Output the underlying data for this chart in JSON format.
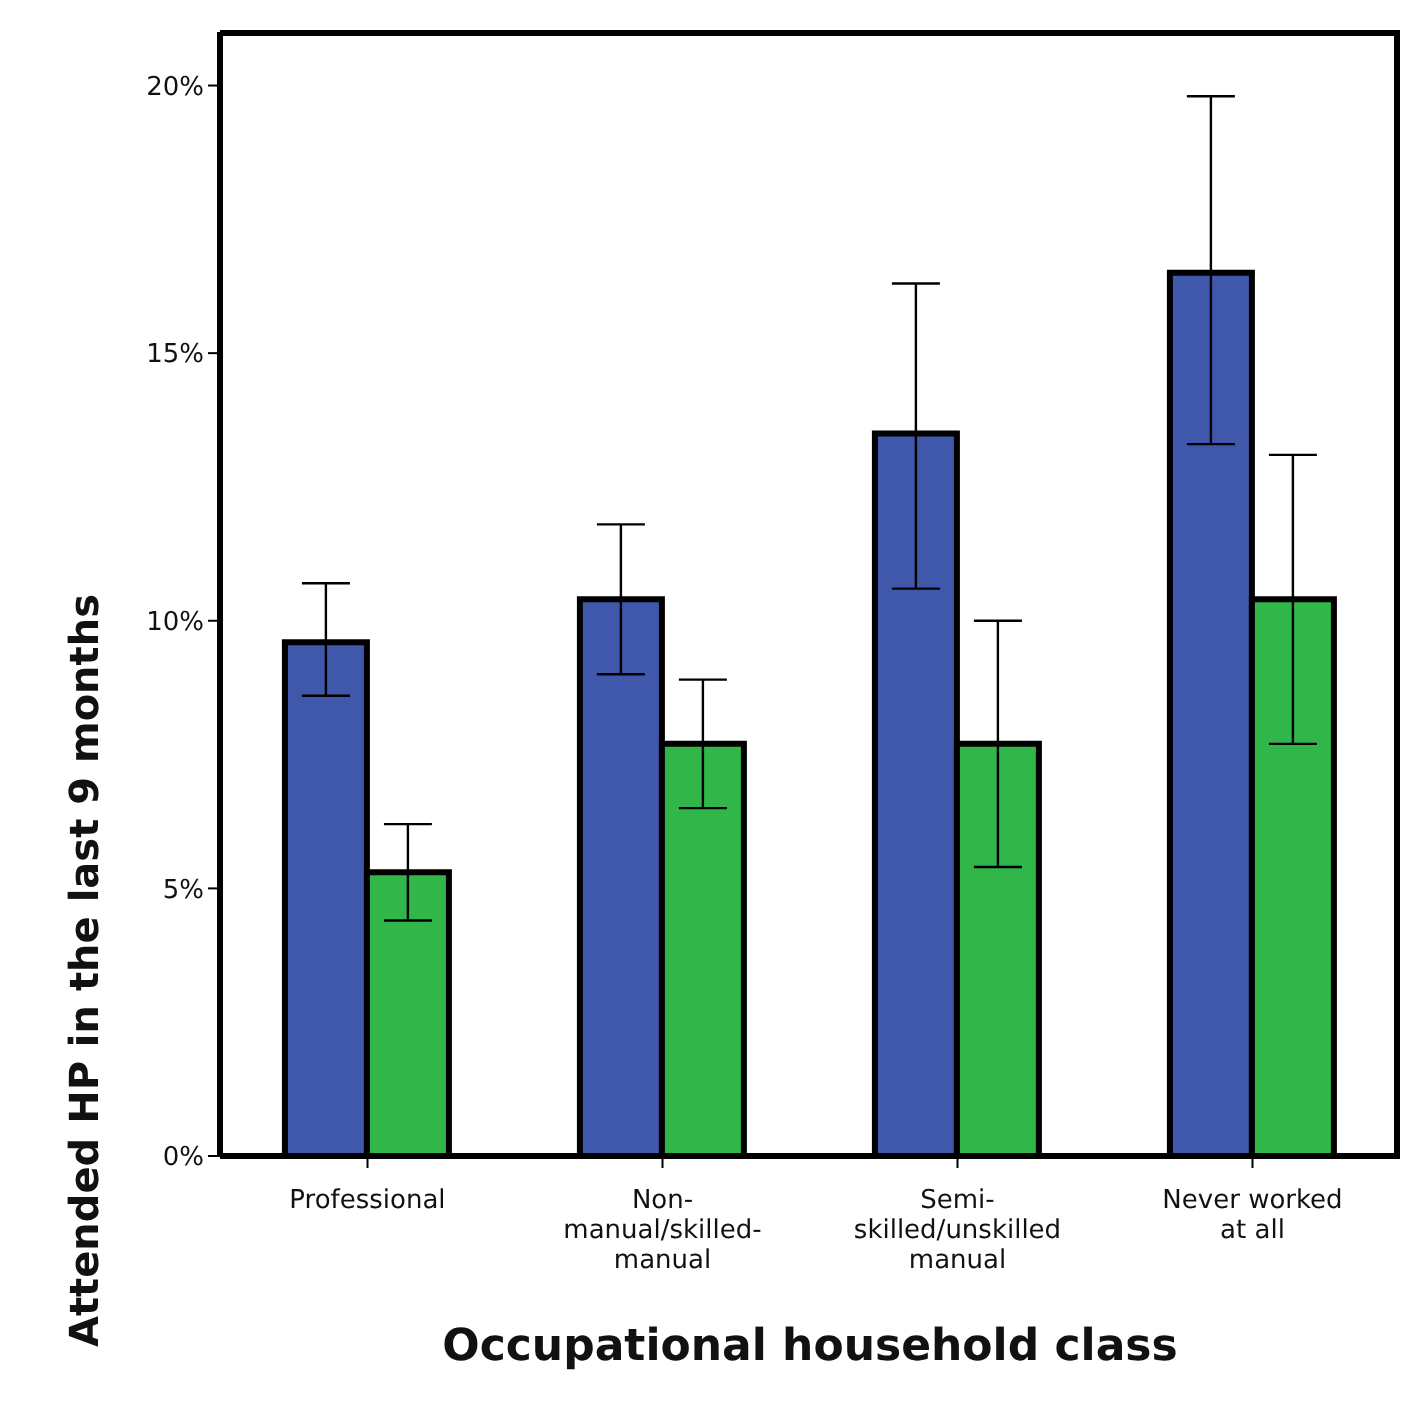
{
  "chart_data": {
    "type": "bar",
    "xlabel": "Occupational household class",
    "ylabel": "Attended HP in the last 9 months",
    "categories": [
      "Professional",
      "Non-manual/skilled-manual",
      "Semi-skilled/unskilled manual",
      "Never worked at all"
    ],
    "series": [
      {
        "color": "#3f58ab",
        "values": [
          9.6,
          10.4,
          13.5,
          16.5
        ],
        "errors": [
          [
            8.6,
            10.7
          ],
          [
            9.0,
            11.8
          ],
          [
            10.6,
            16.3
          ],
          [
            13.3,
            19.8
          ]
        ]
      },
      {
        "color": "#31b64a",
        "values": [
          5.3,
          7.7,
          7.7,
          10.4
        ],
        "errors": [
          [
            4.4,
            6.2
          ],
          [
            6.5,
            8.9
          ],
          [
            5.4,
            10.0
          ],
          [
            7.7,
            13.1
          ]
        ]
      }
    ],
    "ylim": [
      0,
      21
    ],
    "yticks": [
      {
        "value": 0,
        "label": "0%"
      },
      {
        "value": 5,
        "label": "5%"
      },
      {
        "value": 10,
        "label": "10%"
      },
      {
        "value": 15,
        "label": "15%"
      },
      {
        "value": 20,
        "label": "20%"
      }
    ],
    "grid": false,
    "legend": false
  }
}
